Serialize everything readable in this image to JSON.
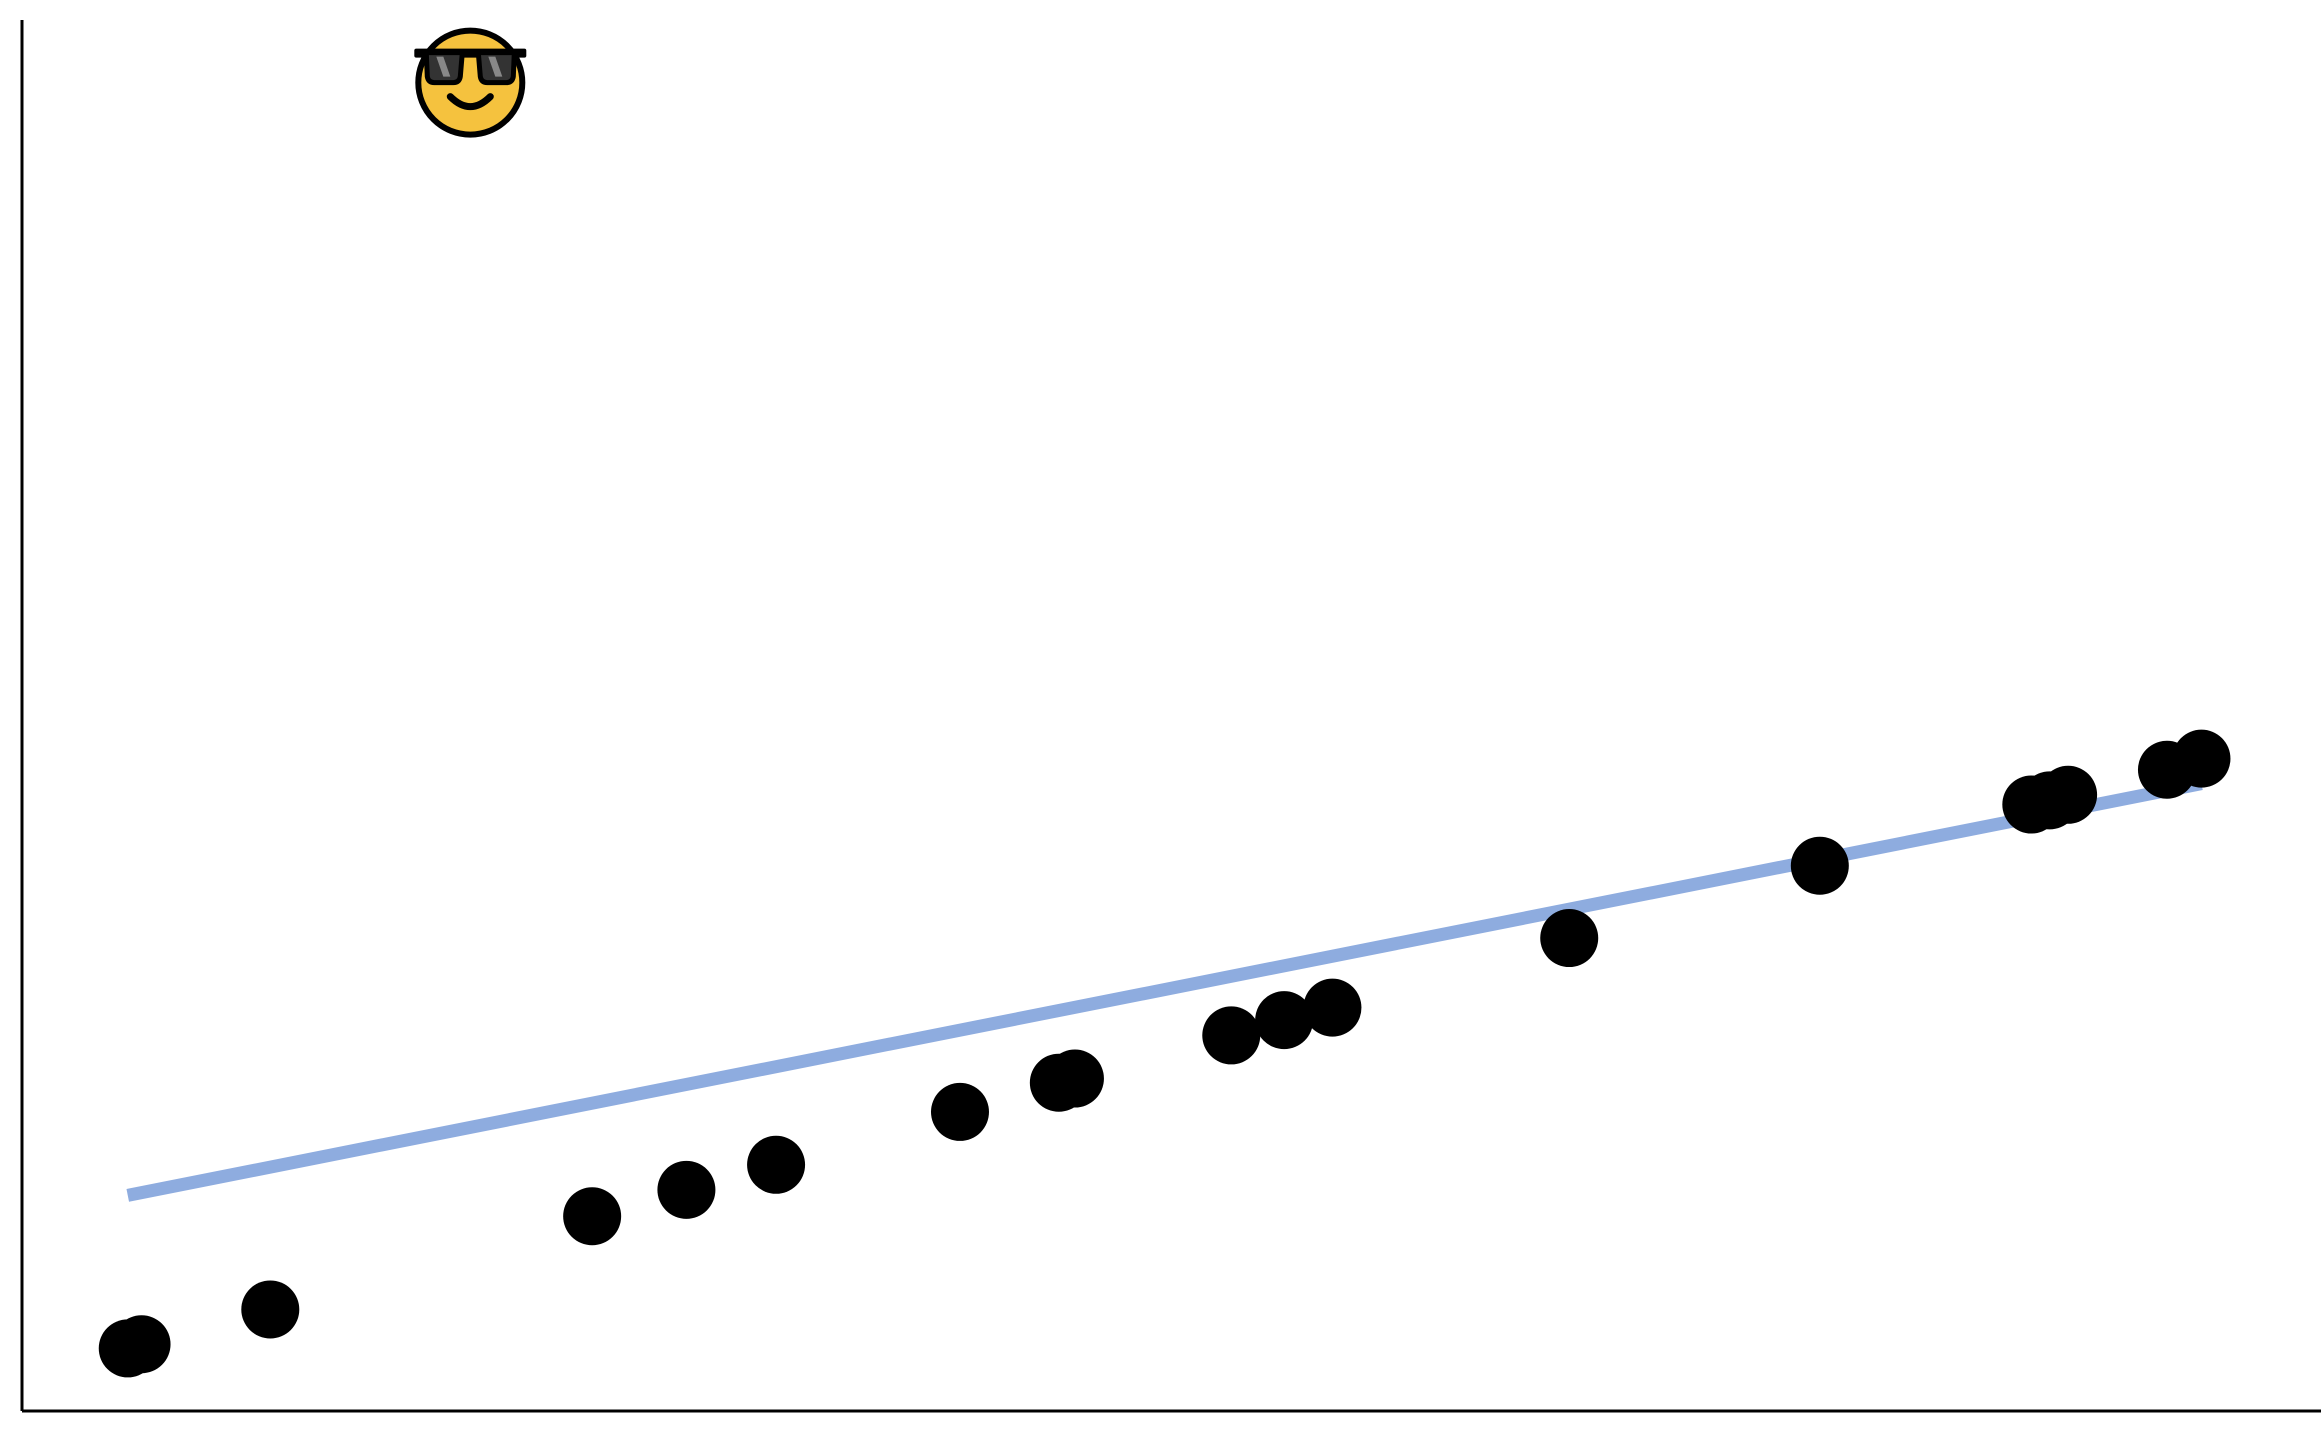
{
  "chart_data": {
    "type": "scatter",
    "title": "",
    "xlabel": "",
    "ylabel": "",
    "grid": false,
    "legend": "none",
    "xlim": [
      0,
      100
    ],
    "ylim": [
      0,
      100
    ],
    "axes": [
      "left",
      "bottom"
    ],
    "points": [
      {
        "x": 4.6,
        "y": 4.5
      },
      {
        "x": 5.2,
        "y": 4.8
      },
      {
        "x": 10.8,
        "y": 7.3
      },
      {
        "x": 24.8,
        "y": 14.0
      },
      {
        "x": 28.9,
        "y": 15.9
      },
      {
        "x": 32.8,
        "y": 17.7
      },
      {
        "x": 40.8,
        "y": 21.5
      },
      {
        "x": 45.1,
        "y": 23.6
      },
      {
        "x": 45.8,
        "y": 23.9
      },
      {
        "x": 52.6,
        "y": 27.0
      },
      {
        "x": 54.9,
        "y": 28.1
      },
      {
        "x": 57.0,
        "y": 29.0
      },
      {
        "x": 67.3,
        "y": 34.0
      },
      {
        "x": 78.2,
        "y": 39.2
      },
      {
        "x": 87.4,
        "y": 43.6
      },
      {
        "x": 88.2,
        "y": 43.9
      },
      {
        "x": 89.0,
        "y": 44.3
      },
      {
        "x": 93.3,
        "y": 46.1
      },
      {
        "x": 94.8,
        "y": 46.9
      }
    ],
    "trendline": {
      "x": [
        4.6,
        94.8
      ],
      "y": [
        15.5,
        45.1
      ],
      "color": "#8eacdf"
    },
    "point_color": "#000000",
    "marker": {
      "icon": "smiling-face-with-sunglasses-icon",
      "glyph": "😎",
      "x": 19.5,
      "y": 95.5,
      "face_color": "#f5c23e",
      "outline_color": "#000000",
      "lens_color": "#333333"
    }
  }
}
